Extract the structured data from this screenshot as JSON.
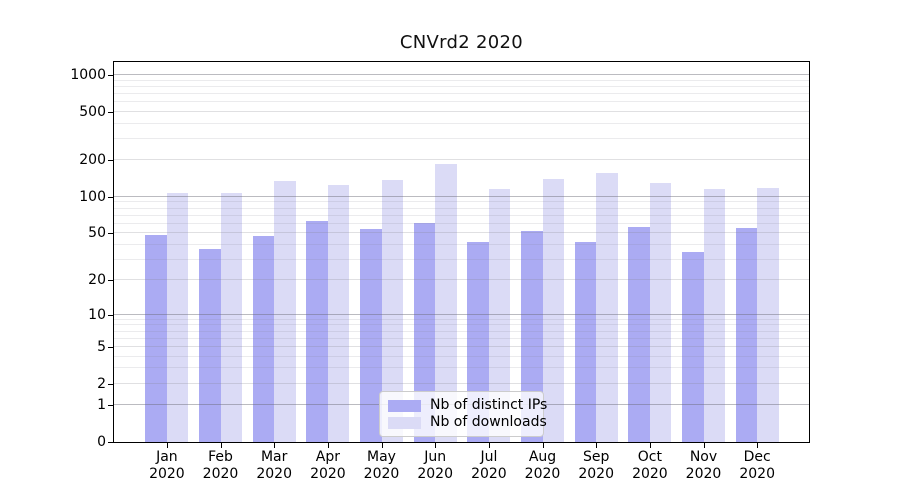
{
  "chart_data": {
    "type": "bar",
    "title": "CNVrd2 2020",
    "scale": "log1p",
    "categories": [
      "Jan",
      "Feb",
      "Mar",
      "Apr",
      "May",
      "Jun",
      "Jul",
      "Aug",
      "Sep",
      "Oct",
      "Nov",
      "Dec"
    ],
    "x_year": "2020",
    "series": [
      {
        "name": "Nb of distinct IPs",
        "color": "#ababf3",
        "values": [
          48,
          37,
          47,
          63,
          54,
          61,
          42,
          52,
          42,
          56,
          35,
          55
        ]
      },
      {
        "name": "Nb of downloads",
        "color": "#dbdbf6",
        "values": [
          107,
          108,
          135,
          126,
          138,
          185,
          117,
          140,
          158,
          131,
          116,
          119
        ]
      }
    ],
    "y_ticks": [
      0,
      1,
      2,
      5,
      10,
      20,
      50,
      100,
      200,
      500,
      1000
    ],
    "y_major_ticks": [
      1,
      10,
      100,
      1000
    ],
    "y_minor_gridlines": [
      3,
      4,
      6,
      7,
      8,
      9,
      30,
      40,
      60,
      70,
      80,
      90,
      300,
      400,
      600,
      700,
      800,
      900
    ],
    "ylim": [
      0,
      1275
    ],
    "grid": true,
    "legend_position": "lower center",
    "colors": {
      "grid_major": "rgba(105,105,115,0.45)",
      "grid_labeled": "rgba(130,130,140,0.25)",
      "grid_minor": "rgba(130,130,140,0.16)",
      "axis": "#000000",
      "background": "#ffffff"
    }
  }
}
